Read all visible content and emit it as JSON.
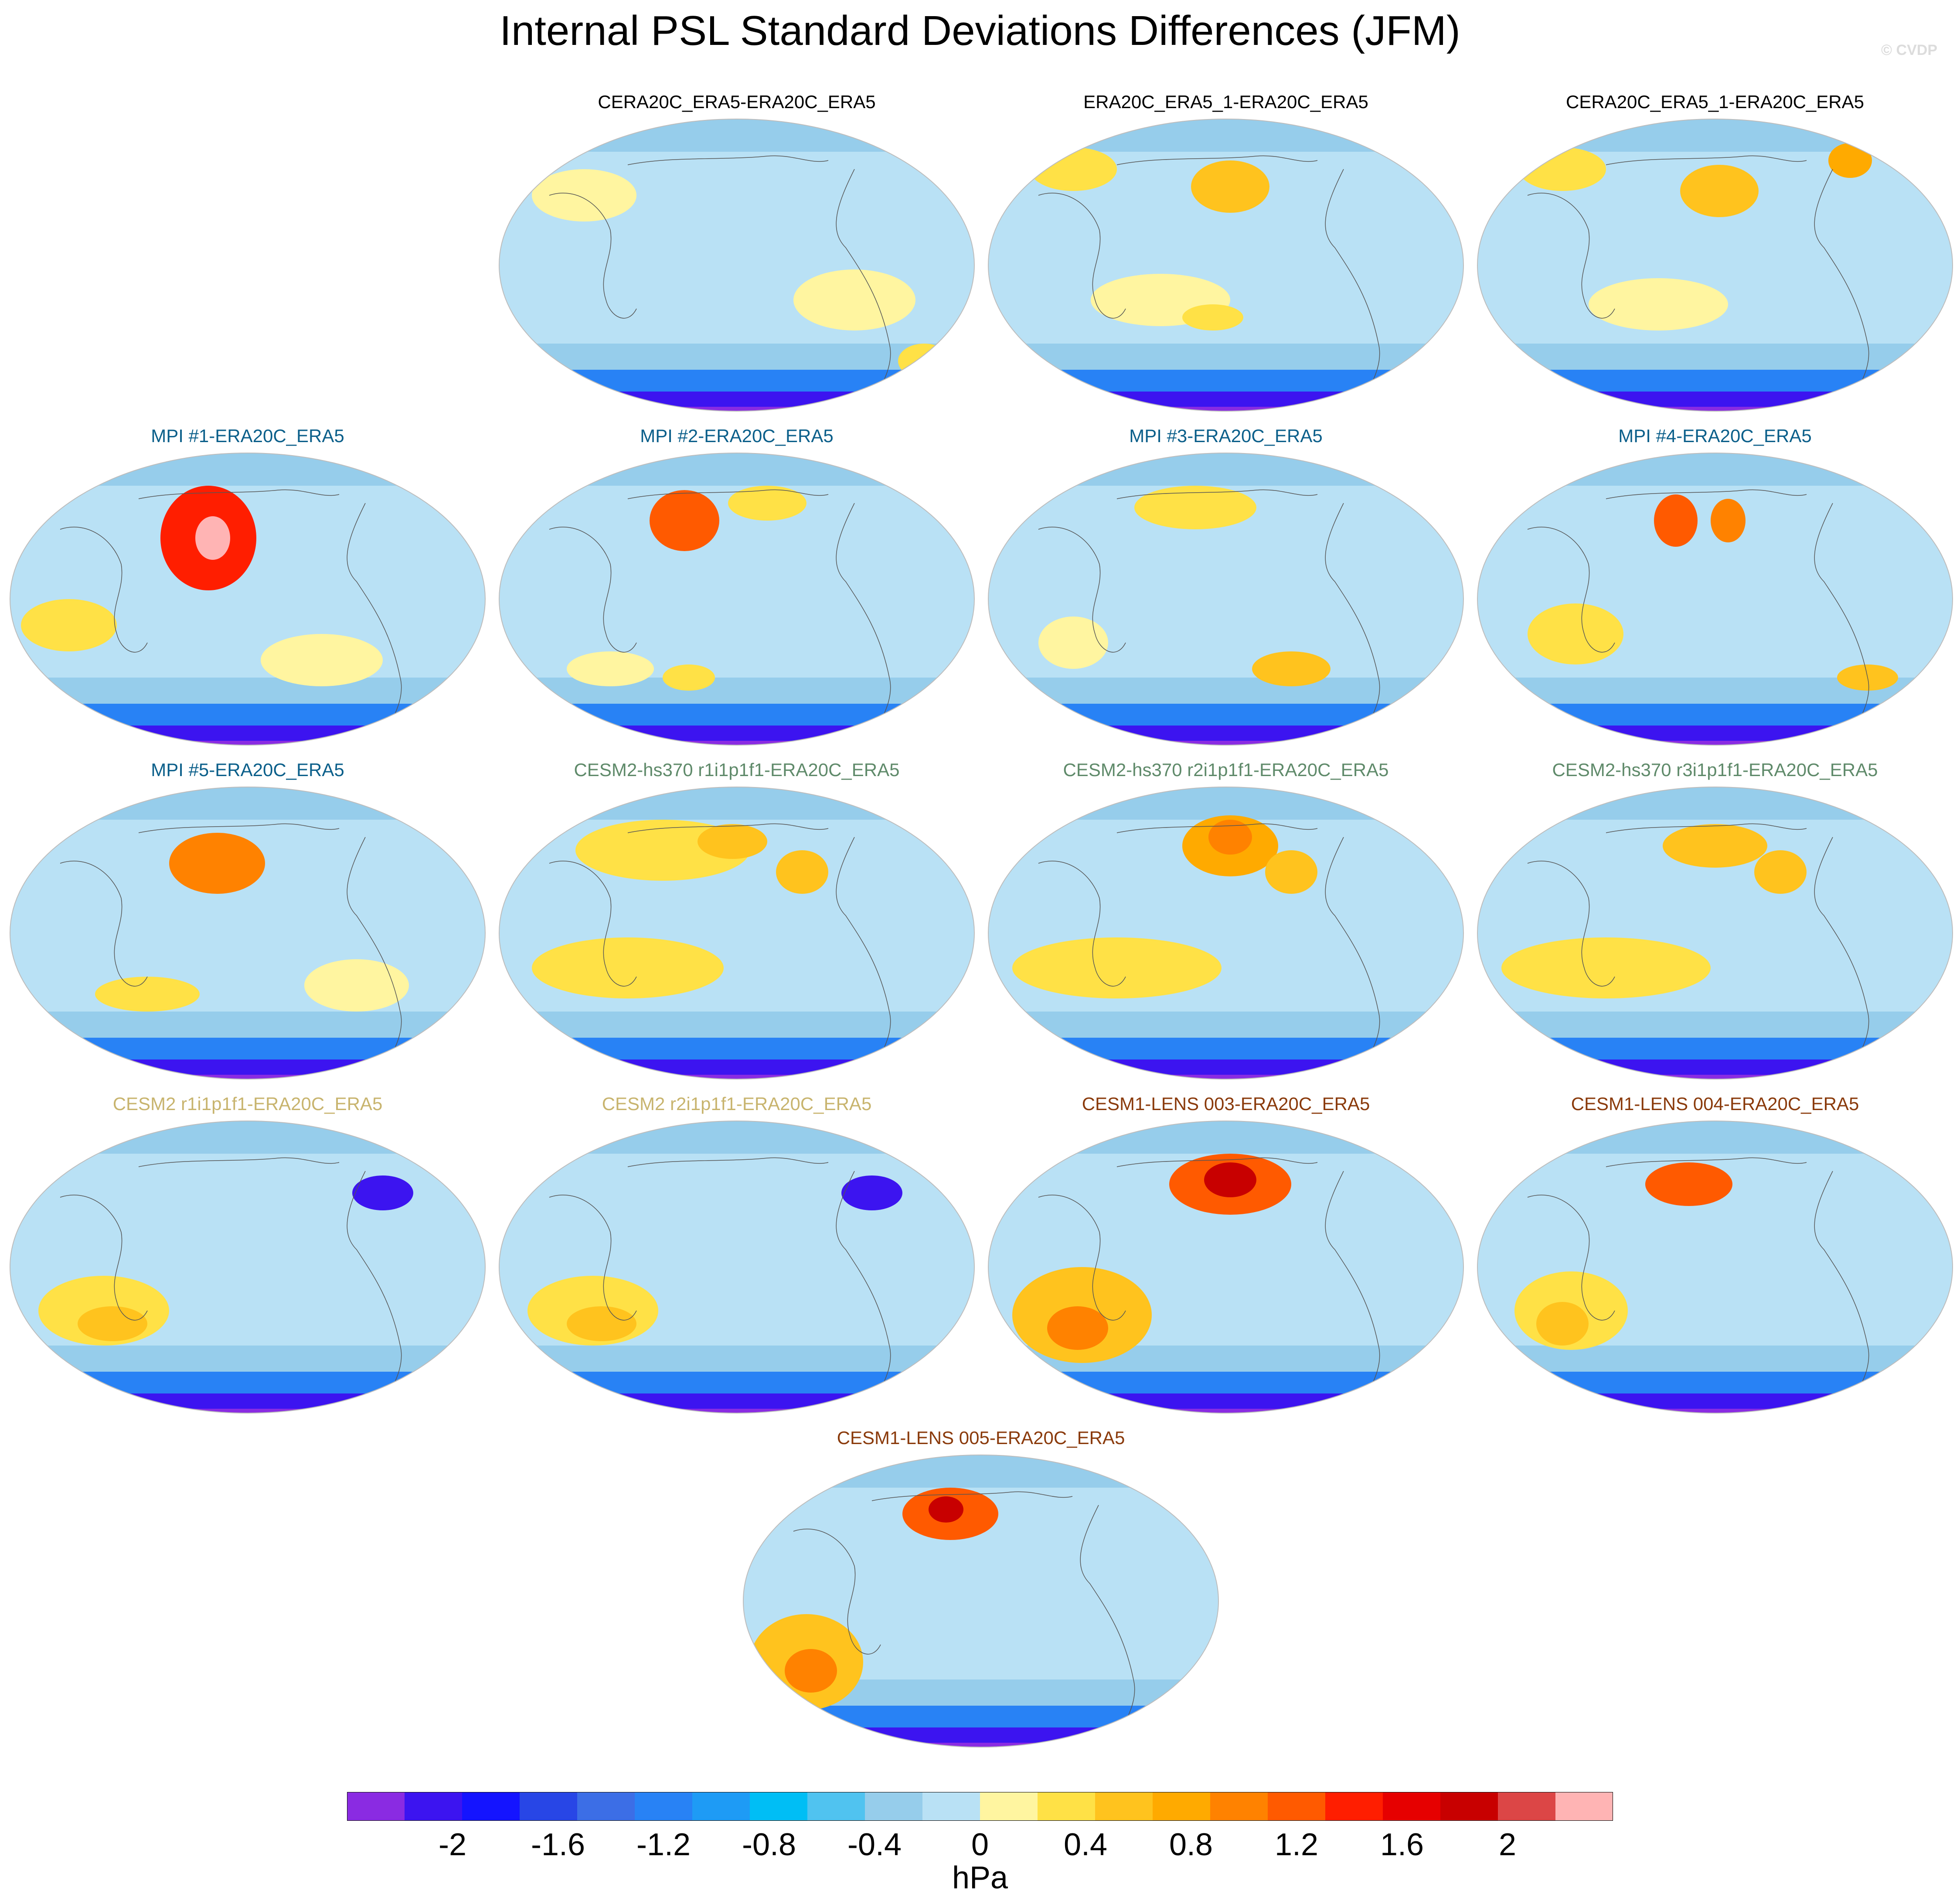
{
  "title": "Internal PSL Standard Deviations Differences (JFM)",
  "watermark": "© CVDP",
  "panels": [
    {
      "title": "CERA20C_ERA5-ERA20C_ERA5",
      "title_color": "#000000"
    },
    {
      "title": "ERA20C_ERA5_1-ERA20C_ERA5",
      "title_color": "#000000"
    },
    {
      "title": "CERA20C_ERA5_1-ERA20C_ERA5",
      "title_color": "#000000"
    },
    {
      "title": "MPI #1-ERA20C_ERA5",
      "title_color": "#0b5f8a"
    },
    {
      "title": "MPI #2-ERA20C_ERA5",
      "title_color": "#0b5f8a"
    },
    {
      "title": "MPI #3-ERA20C_ERA5",
      "title_color": "#0b5f8a"
    },
    {
      "title": "MPI #4-ERA20C_ERA5",
      "title_color": "#0b5f8a"
    },
    {
      "title": "MPI #5-ERA20C_ERA5",
      "title_color": "#0b5f8a"
    },
    {
      "title": "CESM2-hs370 r1i1p1f1-ERA20C_ERA5",
      "title_color": "#5f8a6a"
    },
    {
      "title": "CESM2-hs370 r2i1p1f1-ERA20C_ERA5",
      "title_color": "#5f8a6a"
    },
    {
      "title": "CESM2-hs370 r3i1p1f1-ERA20C_ERA5",
      "title_color": "#5f8a6a"
    },
    {
      "title": "CESM2 r1i1p1f1-ERA20C_ERA5",
      "title_color": "#c8b46e"
    },
    {
      "title": "CESM2 r2i1p1f1-ERA20C_ERA5",
      "title_color": "#c8b46e"
    },
    {
      "title": "CESM1-LENS 003-ERA20C_ERA5",
      "title_color": "#8a3a0b"
    },
    {
      "title": "CESM1-LENS 004-ERA20C_ERA5",
      "title_color": "#8a3a0b"
    },
    {
      "title": "CESM1-LENS 005-ERA20C_ERA5",
      "title_color": "#8a3a0b"
    }
  ],
  "colorbar": {
    "colors": [
      "#8a2be2",
      "#3c14f0",
      "#1414ff",
      "#2846e6",
      "#3c6ee6",
      "#2882f5",
      "#1e9bf5",
      "#00bef5",
      "#50c3f0",
      "#96cdeb",
      "#b9e1f5",
      "#fff5a0",
      "#ffe146",
      "#ffc31e",
      "#ffaa00",
      "#ff8200",
      "#ff5a00",
      "#ff1e00",
      "#e60000",
      "#c80000",
      "#dc4646",
      "#ffb4b4"
    ],
    "tick_labels": [
      "-2",
      "-1.6",
      "-1.2",
      "-0.8",
      "-0.4",
      "0",
      "0.4",
      "0.8",
      "1.2",
      "1.6",
      "2"
    ],
    "tick_values": [
      -2,
      -1.6,
      -1.2,
      -0.8,
      -0.4,
      0,
      0.4,
      0.8,
      1.2,
      1.6,
      2
    ],
    "range": [
      -2.4,
      2.4
    ],
    "unit": "hPa"
  }
}
